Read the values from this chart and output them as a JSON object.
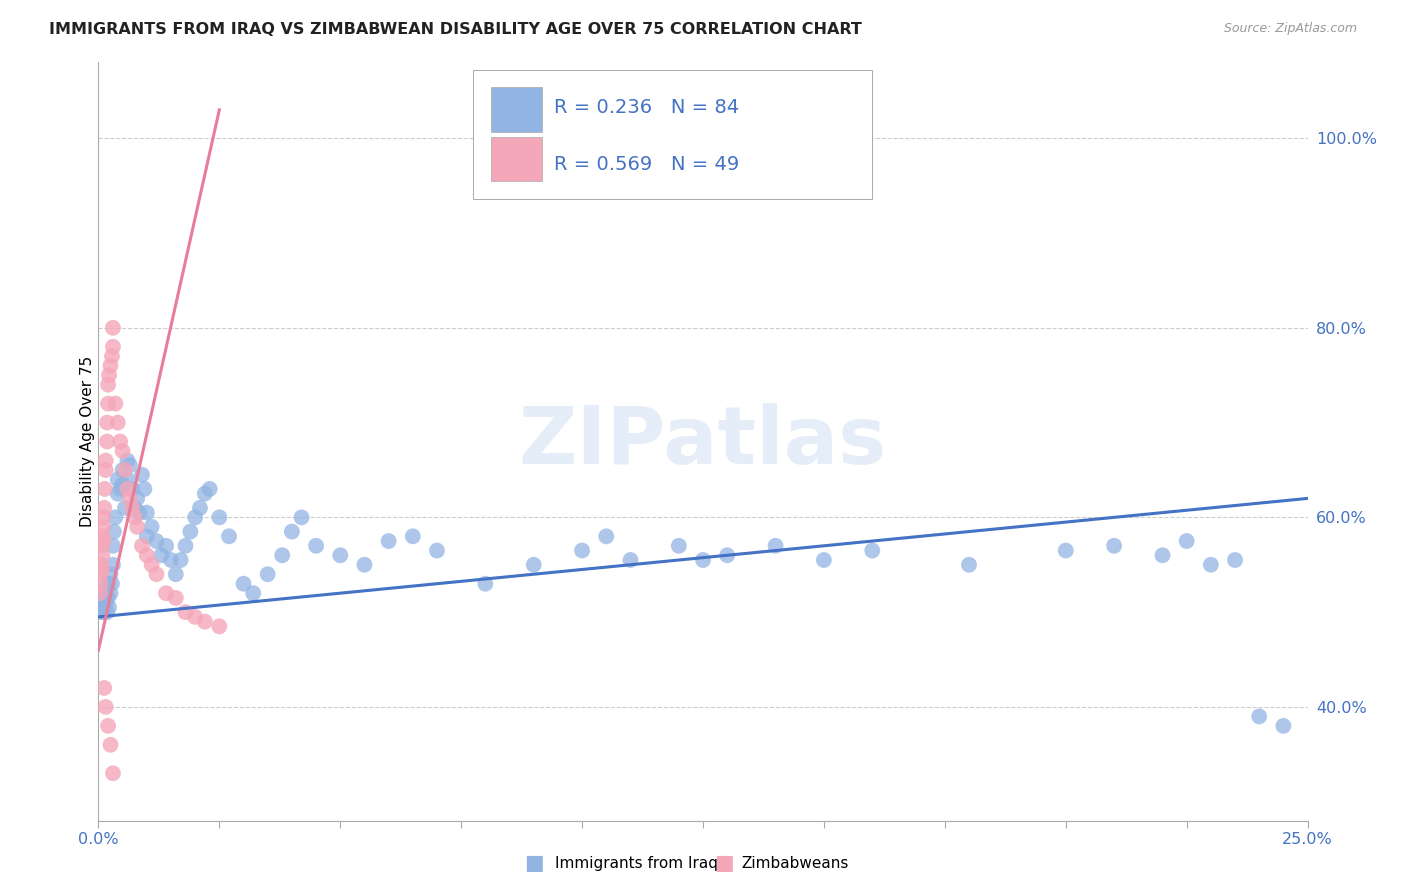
{
  "title": "IMMIGRANTS FROM IRAQ VS ZIMBABWEAN DISABILITY AGE OVER 75 CORRELATION CHART",
  "source": "Source: ZipAtlas.com",
  "ylabel": "Disability Age Over 75",
  "yticks": [
    40.0,
    60.0,
    80.0,
    100.0
  ],
  "ytick_labels": [
    "40.0%",
    "60.0%",
    "80.0%",
    "100.0%"
  ],
  "xtick_labels": [
    "0.0%",
    "",
    "",
    "",
    "",
    "",
    "",
    "",
    "",
    "",
    "25.0%"
  ],
  "xlim": [
    0.0,
    25.0
  ],
  "ylim": [
    28.0,
    108.0
  ],
  "legend1_R": "0.236",
  "legend1_N": "84",
  "legend2_R": "0.569",
  "legend2_N": "49",
  "color_iraq": "#92B4E3",
  "color_zim": "#F4A7B9",
  "color_iraq_line": "#4472C4",
  "color_zim_line": "#E87D99",
  "color_axis_text": "#4472C4",
  "color_title": "#222222",
  "watermark": "ZIPatlas",
  "iraq_trend_x0": 0.0,
  "iraq_trend_y0": 49.5,
  "iraq_trend_x1": 25.0,
  "iraq_trend_y1": 62.0,
  "zim_trend_x0": 0.0,
  "zim_trend_y0": 46.0,
  "zim_trend_x1": 2.5,
  "zim_trend_y1": 103.0,
  "iraq_x": [
    0.05,
    0.07,
    0.08,
    0.1,
    0.1,
    0.12,
    0.13,
    0.15,
    0.15,
    0.18,
    0.2,
    0.2,
    0.22,
    0.25,
    0.25,
    0.28,
    0.3,
    0.3,
    0.32,
    0.35,
    0.4,
    0.4,
    0.45,
    0.5,
    0.5,
    0.55,
    0.6,
    0.6,
    0.65,
    0.7,
    0.75,
    0.8,
    0.85,
    0.9,
    0.95,
    1.0,
    1.0,
    1.1,
    1.2,
    1.3,
    1.4,
    1.5,
    1.6,
    1.7,
    1.8,
    1.9,
    2.0,
    2.1,
    2.2,
    2.3,
    2.5,
    2.7,
    3.0,
    3.2,
    3.5,
    3.8,
    4.0,
    4.2,
    4.5,
    5.0,
    5.5,
    6.0,
    6.5,
    7.0,
    8.0,
    9.0,
    10.0,
    10.5,
    11.0,
    12.0,
    12.5,
    13.0,
    14.0,
    15.0,
    16.0,
    18.0,
    20.0,
    21.0,
    22.0,
    22.5,
    23.0,
    23.5,
    24.0,
    24.5
  ],
  "iraq_y": [
    50.5,
    51.0,
    50.0,
    51.5,
    50.0,
    52.0,
    50.5,
    52.5,
    51.0,
    50.0,
    53.0,
    51.5,
    50.5,
    52.0,
    54.0,
    53.0,
    55.0,
    57.0,
    58.5,
    60.0,
    64.0,
    62.5,
    63.0,
    65.0,
    63.5,
    61.0,
    66.0,
    64.0,
    65.5,
    63.0,
    61.0,
    62.0,
    60.5,
    64.5,
    63.0,
    58.0,
    60.5,
    59.0,
    57.5,
    56.0,
    57.0,
    55.5,
    54.0,
    55.5,
    57.0,
    58.5,
    60.0,
    61.0,
    62.5,
    63.0,
    60.0,
    58.0,
    53.0,
    52.0,
    54.0,
    56.0,
    58.5,
    60.0,
    57.0,
    56.0,
    55.0,
    57.5,
    58.0,
    56.5,
    53.0,
    55.0,
    56.5,
    58.0,
    55.5,
    57.0,
    55.5,
    56.0,
    57.0,
    55.5,
    56.5,
    55.0,
    56.5,
    57.0,
    56.0,
    57.5,
    55.0,
    55.5,
    39.0,
    38.0
  ],
  "zim_x": [
    0.03,
    0.04,
    0.05,
    0.06,
    0.07,
    0.08,
    0.08,
    0.09,
    0.1,
    0.1,
    0.1,
    0.12,
    0.13,
    0.15,
    0.15,
    0.18,
    0.18,
    0.2,
    0.2,
    0.22,
    0.25,
    0.28,
    0.3,
    0.3,
    0.35,
    0.4,
    0.45,
    0.5,
    0.55,
    0.6,
    0.65,
    0.7,
    0.75,
    0.8,
    0.9,
    1.0,
    1.1,
    1.2,
    1.4,
    1.6,
    1.8,
    2.0,
    2.2,
    2.5,
    0.12,
    0.15,
    0.2,
    0.25,
    0.3
  ],
  "zim_y": [
    52.0,
    54.0,
    53.0,
    55.0,
    54.5,
    56.0,
    57.0,
    58.0,
    57.5,
    59.0,
    60.0,
    61.0,
    63.0,
    65.0,
    66.0,
    68.0,
    70.0,
    72.0,
    74.0,
    75.0,
    76.0,
    77.0,
    78.0,
    80.0,
    72.0,
    70.0,
    68.0,
    67.0,
    65.0,
    63.0,
    62.0,
    61.0,
    60.0,
    59.0,
    57.0,
    56.0,
    55.0,
    54.0,
    52.0,
    51.5,
    50.0,
    49.5,
    49.0,
    48.5,
    42.0,
    40.0,
    38.0,
    36.0,
    33.0
  ]
}
